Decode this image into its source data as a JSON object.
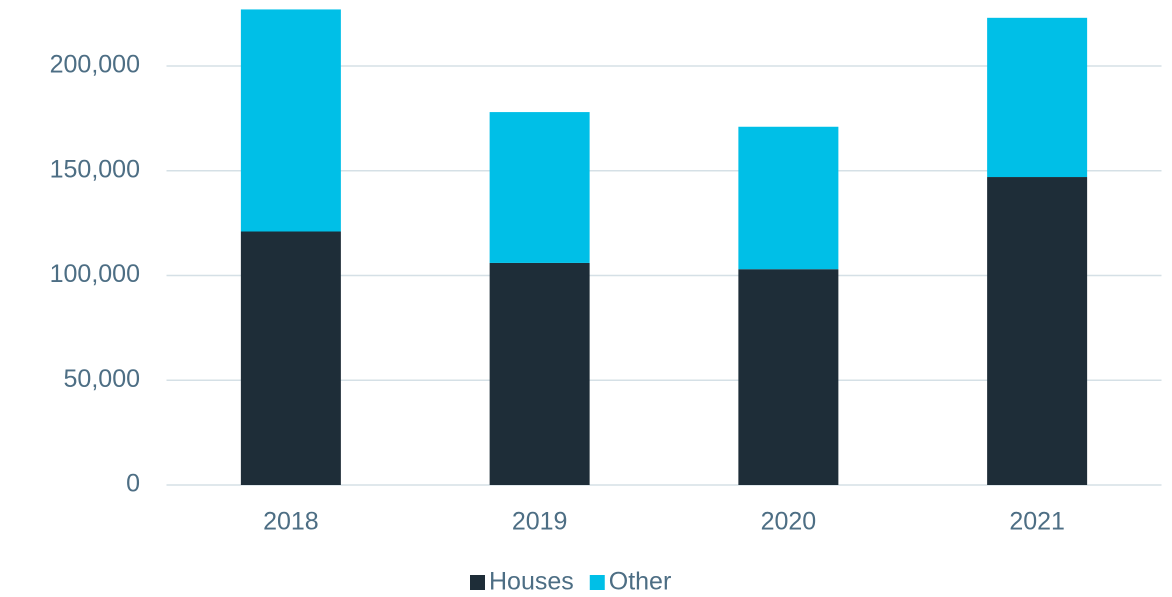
{
  "chart_data": {
    "type": "stacked_bar",
    "categories": [
      "2018",
      "2019",
      "2020",
      "2021"
    ],
    "series": [
      {
        "name": "Houses",
        "color": "#1e2d38",
        "values": [
          121000,
          106000,
          103000,
          147000
        ]
      },
      {
        "name": "Other",
        "color": "#00bfe7",
        "values": [
          106000,
          72000,
          68000,
          76000
        ]
      }
    ],
    "ylim": [
      0,
      230000
    ],
    "yticks": [
      0,
      {
        "value": 50000,
        "label": "50,000"
      },
      {
        "value": 100000,
        "label": "100,000"
      },
      {
        "value": 150000,
        "label": "150,000"
      },
      {
        "value": 200000,
        "label": "200,000"
      }
    ],
    "grid": true,
    "legend": "bottom"
  }
}
